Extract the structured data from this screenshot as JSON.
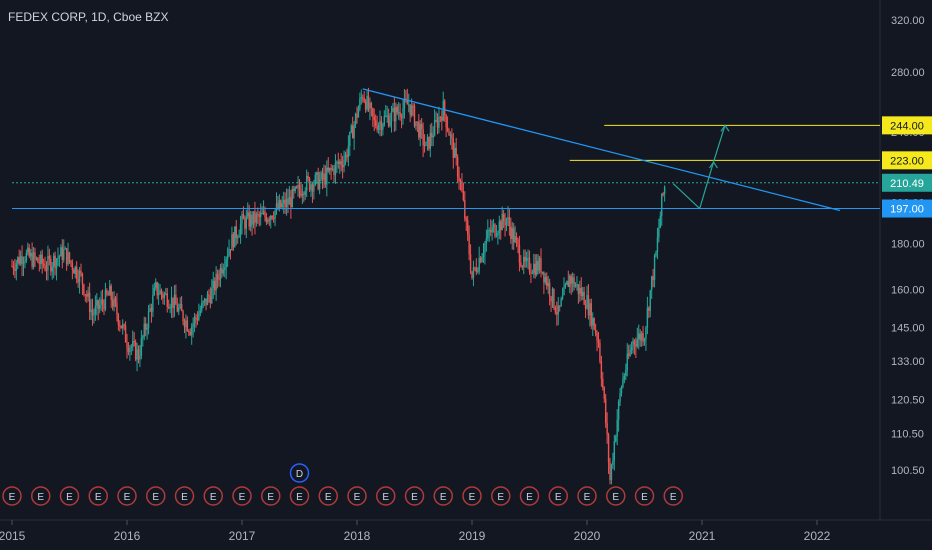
{
  "header": {
    "title": "FEDEX CORP, 1D, Cboe BZX"
  },
  "colors": {
    "background": "#131722",
    "up_candle": "#26a69a",
    "down_candle": "#ef5350",
    "trendline": "#2196f3",
    "resistance": "#f5e91d",
    "support": "#2196f3",
    "current_price": "#26a69a",
    "arrow": "#26a69a",
    "earnings_badge": "#b03a3a",
    "dividend_badge": "#2962ff"
  },
  "chart_data": {
    "type": "candlestick",
    "title": "FEDEX CORP, 1D, Cboe BZX",
    "y_scale": "log",
    "ylim": [
      95,
      330
    ],
    "y_ticks": [
      320,
      280,
      240,
      200,
      180,
      160,
      145,
      133,
      120.5,
      110.5,
      100.5
    ],
    "y_tick_labels": [
      "320.00",
      "280.00",
      "240.00",
      "200.00",
      "180.00",
      "160.00",
      "145.00",
      "133.00",
      "120.50",
      "110.50",
      "100.50"
    ],
    "x_ticks": [
      2015,
      2016,
      2017,
      2018,
      2019,
      2020,
      2021,
      2022
    ],
    "x_tick_labels": [
      "2015",
      "2016",
      "2017",
      "2018",
      "2019",
      "2020",
      "2021",
      "2022"
    ],
    "xlim": [
      2015.0,
      2022.5
    ],
    "grid": false,
    "price_path": [
      [
        2015.0,
        170
      ],
      [
        2015.1,
        175
      ],
      [
        2015.3,
        170
      ],
      [
        2015.45,
        176
      ],
      [
        2015.6,
        165
      ],
      [
        2015.7,
        150
      ],
      [
        2015.85,
        158
      ],
      [
        2016.0,
        140
      ],
      [
        2016.1,
        135
      ],
      [
        2016.25,
        160
      ],
      [
        2016.4,
        155
      ],
      [
        2016.55,
        145
      ],
      [
        2016.75,
        160
      ],
      [
        2016.9,
        180
      ],
      [
        2017.0,
        190
      ],
      [
        2017.2,
        193
      ],
      [
        2017.4,
        200
      ],
      [
        2017.55,
        210
      ],
      [
        2017.7,
        212
      ],
      [
        2017.9,
        225
      ],
      [
        2018.05,
        265
      ],
      [
        2018.15,
        245
      ],
      [
        2018.3,
        250
      ],
      [
        2018.45,
        258
      ],
      [
        2018.6,
        230
      ],
      [
        2018.75,
        255
      ],
      [
        2018.9,
        210
      ],
      [
        2019.0,
        165
      ],
      [
        2019.15,
        185
      ],
      [
        2019.3,
        192
      ],
      [
        2019.45,
        170
      ],
      [
        2019.6,
        170
      ],
      [
        2019.75,
        150
      ],
      [
        2019.85,
        165
      ],
      [
        2020.0,
        155
      ],
      [
        2020.1,
        140
      ],
      [
        2020.2,
        98
      ],
      [
        2020.3,
        125
      ],
      [
        2020.4,
        140
      ],
      [
        2020.5,
        143
      ],
      [
        2020.6,
        175
      ],
      [
        2020.65,
        200
      ],
      [
        2020.68,
        210
      ]
    ],
    "horizontal_levels": [
      {
        "label": "244.00",
        "value": 244,
        "style": "resistance",
        "x_start": 2020.15
      },
      {
        "label": "223.00",
        "value": 223,
        "style": "resistance",
        "x_start": 2019.85
      },
      {
        "label": "210.49",
        "value": 210.49,
        "style": "current",
        "x_start": 2015.0
      },
      {
        "label": "197.00",
        "value": 197,
        "style": "support",
        "x_start": 2015.0
      }
    ],
    "trendline": {
      "from": [
        2018.05,
        268
      ],
      "to": [
        2022.2,
        196
      ]
    },
    "projection_path": [
      [
        2020.75,
        210
      ],
      [
        2020.98,
        197
      ],
      [
        2021.1,
        222
      ],
      [
        2021.2,
        244
      ]
    ],
    "events": {
      "earnings_label": "E",
      "earnings_x": [
        2015.0,
        2015.25,
        2015.5,
        2015.75,
        2016.0,
        2016.25,
        2016.5,
        2016.75,
        2017.0,
        2017.25,
        2017.5,
        2017.75,
        2018.0,
        2018.25,
        2018.5,
        2018.75,
        2019.0,
        2019.25,
        2019.5,
        2019.75,
        2020.0,
        2020.25,
        2020.5,
        2020.75
      ],
      "dividend_label": "D",
      "dividend_x": [
        2017.5
      ]
    }
  }
}
